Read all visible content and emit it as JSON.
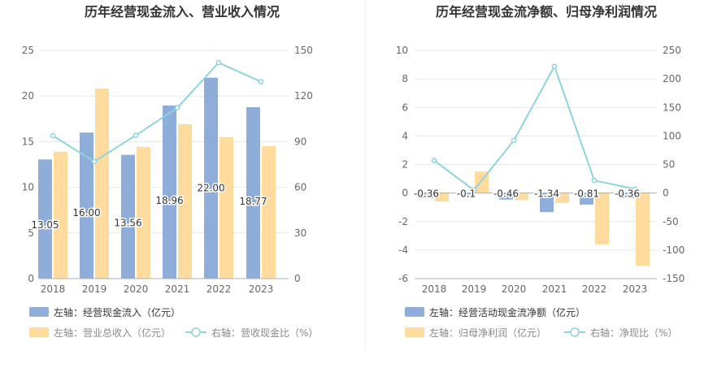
{
  "chart_data": [
    {
      "type": "bar+line",
      "title": "历年经营现金流入、营业收入情况",
      "categories": [
        "2018",
        "2019",
        "2020",
        "2021",
        "2022",
        "2023"
      ],
      "left_axis": {
        "min": 0,
        "max": 25,
        "ticks": [
          "0",
          "5",
          "10",
          "15",
          "20",
          "25"
        ]
      },
      "right_axis": {
        "min": 0,
        "max": 150,
        "ticks": [
          "0",
          "30",
          "60",
          "90",
          "120",
          "150"
        ]
      },
      "series": [
        {
          "name": "左轴：经营现金流入（亿元）",
          "type": "bar",
          "axis": "left",
          "color": "#8eadd9",
          "values": [
            13.05,
            16.0,
            13.56,
            18.96,
            22.0,
            18.77
          ],
          "labels": [
            "13.05",
            "16.00",
            "13.56",
            "18.96",
            "22.00",
            "18.77"
          ]
        },
        {
          "name": "左轴：营业总收入（亿元）",
          "type": "bar",
          "axis": "left",
          "color": "#ffdb9e",
          "values": [
            13.9,
            20.8,
            14.4,
            16.9,
            15.5,
            14.5
          ]
        },
        {
          "name": "右轴：营收现金比（%）",
          "type": "line",
          "axis": "right",
          "color": "#8fd3dc",
          "values": [
            93.9,
            76.9,
            94.2,
            112.2,
            141.9,
            129.4
          ]
        }
      ]
    },
    {
      "type": "bar+line",
      "title": "历年经营现金流净额、归母净利润情况",
      "categories": [
        "2018",
        "2019",
        "2020",
        "2021",
        "2022",
        "2023"
      ],
      "left_axis": {
        "min": -6,
        "max": 10,
        "ticks": [
          "-6",
          "-4",
          "-2",
          "0",
          "2",
          "4",
          "6",
          "8",
          "10"
        ]
      },
      "right_axis": {
        "min": -150,
        "max": 250,
        "ticks": [
          "-150",
          "-100",
          "-50",
          "0",
          "50",
          "100",
          "150",
          "200",
          "250"
        ]
      },
      "series": [
        {
          "name": "左轴：经营活动现金流净额（亿元）",
          "type": "bar",
          "axis": "left",
          "color": "#8eadd9",
          "values": [
            -0.36,
            -0.1,
            -0.46,
            -1.34,
            -0.81,
            -0.36
          ],
          "labels": [
            "-0.36",
            "-0.1",
            "-0.46",
            "-1.34",
            "-0.81",
            "-0.36"
          ]
        },
        {
          "name": "左轴：归母净利润（亿元）",
          "type": "bar",
          "axis": "left",
          "color": "#ffdb9e",
          "values": [
            -0.6,
            1.5,
            -0.5,
            -0.7,
            -3.6,
            -5.1
          ]
        },
        {
          "name": "右轴：净现比（%）",
          "type": "line",
          "axis": "right",
          "color": "#8fd3dc",
          "values": [
            57,
            5,
            92,
            222,
            22,
            7
          ]
        }
      ]
    }
  ]
}
